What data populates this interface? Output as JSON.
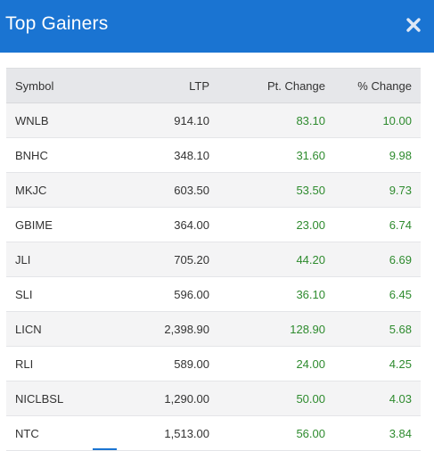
{
  "modal": {
    "title": "Top Gainers",
    "close_icon": "close-x-icon",
    "header_color": "#1a74d2"
  },
  "table": {
    "columns": [
      "Symbol",
      "LTP",
      "Pt. Change",
      "% Change"
    ],
    "rows": [
      {
        "symbol": "WNLB",
        "ltp": "914.10",
        "pt_change": "83.10",
        "pct_change": "10.00"
      },
      {
        "symbol": "BNHC",
        "ltp": "348.10",
        "pt_change": "31.60",
        "pct_change": "9.98"
      },
      {
        "symbol": "MKJC",
        "ltp": "603.50",
        "pt_change": "53.50",
        "pct_change": "9.73"
      },
      {
        "symbol": "GBIME",
        "ltp": "364.00",
        "pt_change": "23.00",
        "pct_change": "6.74"
      },
      {
        "symbol": "JLI",
        "ltp": "705.20",
        "pt_change": "44.20",
        "pct_change": "6.69"
      },
      {
        "symbol": "SLI",
        "ltp": "596.00",
        "pt_change": "36.10",
        "pct_change": "6.45"
      },
      {
        "symbol": "LICN",
        "ltp": "2,398.90",
        "pt_change": "128.90",
        "pct_change": "5.68"
      },
      {
        "symbol": "RLI",
        "ltp": "589.00",
        "pt_change": "24.00",
        "pct_change": "4.25"
      },
      {
        "symbol": "NICLBSL",
        "ltp": "1,290.00",
        "pt_change": "50.00",
        "pct_change": "4.03"
      },
      {
        "symbol": "NTC",
        "ltp": "1,513.00",
        "pt_change": "56.00",
        "pct_change": "3.84"
      }
    ],
    "gain_color": "#2e8b2e"
  }
}
